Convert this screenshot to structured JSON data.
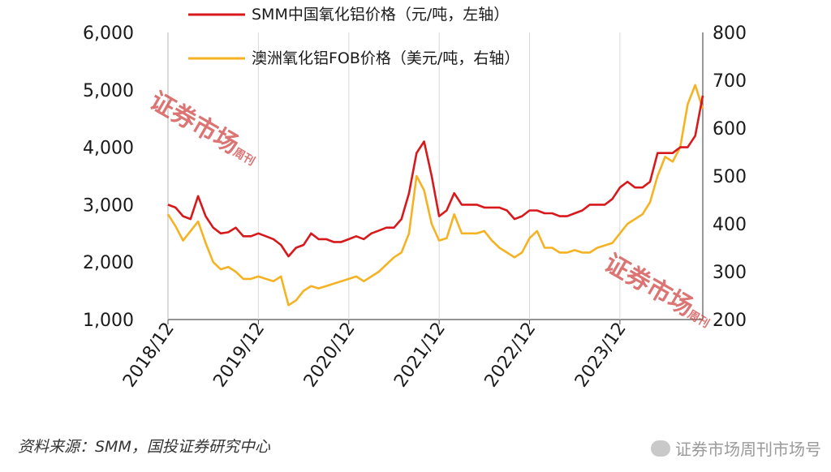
{
  "chart_data": {
    "type": "line",
    "x": [
      "2018-12",
      "2019-01",
      "2019-02",
      "2019-03",
      "2019-04",
      "2019-05",
      "2019-06",
      "2019-07",
      "2019-08",
      "2019-09",
      "2019-10",
      "2019-11",
      "2019-12",
      "2020-01",
      "2020-02",
      "2020-03",
      "2020-04",
      "2020-05",
      "2020-06",
      "2020-07",
      "2020-08",
      "2020-09",
      "2020-10",
      "2020-11",
      "2020-12",
      "2021-01",
      "2021-02",
      "2021-03",
      "2021-04",
      "2021-05",
      "2021-06",
      "2021-07",
      "2021-08",
      "2021-09",
      "2021-10",
      "2021-11",
      "2021-12",
      "2022-01",
      "2022-02",
      "2022-03",
      "2022-04",
      "2022-05",
      "2022-06",
      "2022-07",
      "2022-08",
      "2022-09",
      "2022-10",
      "2022-11",
      "2022-12",
      "2023-01",
      "2023-02",
      "2023-03",
      "2023-04",
      "2023-05",
      "2023-06",
      "2023-07",
      "2023-08",
      "2023-09",
      "2023-10",
      "2023-11",
      "2023-12",
      "2024-01",
      "2024-02",
      "2024-03",
      "2024-04",
      "2024-05",
      "2024-06",
      "2024-07",
      "2024-08",
      "2024-09",
      "2024-10",
      "2024-11"
    ],
    "series": [
      {
        "name": "SMM中国氧化铝价格（元/吨，左轴）",
        "axis": "left",
        "color": "#d7191c",
        "values": [
          3000,
          2950,
          2800,
          2750,
          3150,
          2800,
          2600,
          2500,
          2520,
          2600,
          2450,
          2450,
          2500,
          2450,
          2400,
          2300,
          2100,
          2250,
          2300,
          2500,
          2400,
          2400,
          2350,
          2350,
          2400,
          2450,
          2400,
          2500,
          2550,
          2600,
          2600,
          2750,
          3200,
          3900,
          4100,
          3500,
          2800,
          2900,
          3200,
          3000,
          3000,
          3000,
          2950,
          2950,
          2950,
          2900,
          2750,
          2800,
          2900,
          2900,
          2850,
          2850,
          2800,
          2800,
          2850,
          2900,
          3000,
          3000,
          3000,
          3100,
          3300,
          3400,
          3300,
          3300,
          3400,
          3900,
          3900,
          3900,
          4000,
          4000,
          4200,
          4900
        ]
      },
      {
        "name": "澳洲氧化铝FOB价格（美元/吨，右轴）",
        "axis": "right",
        "color": "#f5b324",
        "values": [
          420,
          395,
          365,
          385,
          405,
          360,
          320,
          305,
          310,
          300,
          285,
          285,
          290,
          285,
          280,
          290,
          230,
          240,
          260,
          270,
          265,
          270,
          275,
          280,
          285,
          290,
          280,
          290,
          300,
          315,
          330,
          340,
          380,
          500,
          470,
          400,
          365,
          370,
          420,
          380,
          380,
          380,
          385,
          365,
          350,
          340,
          330,
          340,
          370,
          385,
          350,
          350,
          340,
          340,
          345,
          340,
          340,
          350,
          355,
          360,
          380,
          400,
          410,
          420,
          445,
          500,
          540,
          530,
          560,
          650,
          690,
          640
        ]
      }
    ],
    "left_axis": {
      "ylim": [
        1000,
        6000
      ],
      "ticks": [
        "1,000",
        "2,000",
        "3,000",
        "4,000",
        "5,000",
        "6,000"
      ]
    },
    "right_axis": {
      "ylim": [
        200,
        800
      ],
      "ticks": [
        "200",
        "300",
        "400",
        "500",
        "600",
        "700",
        "800"
      ]
    },
    "x_ticks": [
      "2018/12",
      "2019/12",
      "2020/12",
      "2021/12",
      "2022/12",
      "2023/12"
    ],
    "grid": "vertical",
    "legend_position": "top"
  },
  "source_text": "资料来源：SMM，国投证券研究中心",
  "watermarks": {
    "stamp_main": "证券市场",
    "stamp_sub": "周刊",
    "bottom_text": "证券市场周刊市场号"
  }
}
